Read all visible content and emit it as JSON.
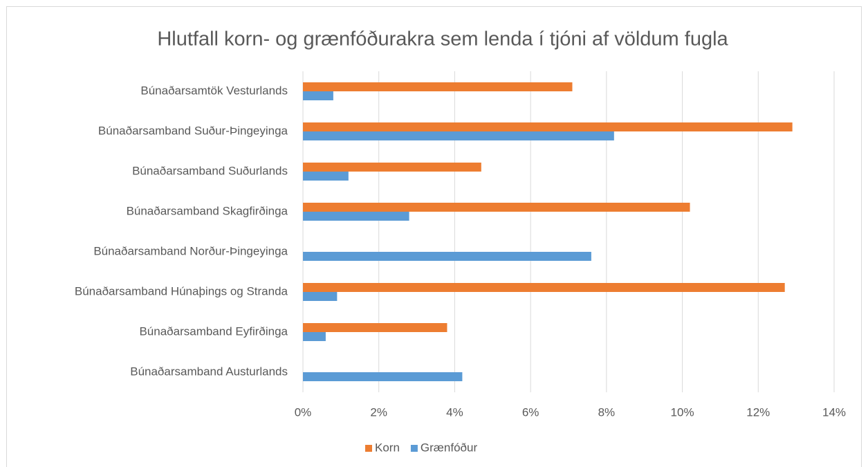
{
  "chart_data": {
    "type": "hbar",
    "title": "Hlutfall korn- og grænfóðurakra sem lenda í tjóni af völdum fugla",
    "categories": [
      "Búnaðarsamtök Vesturlands",
      "Búnaðarsamband Suður-Þingeyinga",
      "Búnaðarsamband Suðurlands",
      "Búnaðarsamband Skagfirðinga",
      "Búnaðarsamband Norður-Þingeyinga",
      "Búnaðarsamband Húnaþings og Stranda",
      "Búnaðarsamband Eyfirðinga",
      "Búnaðarsamband Austurlands"
    ],
    "series": [
      {
        "name": "Korn",
        "color": "#ed7d31",
        "values": [
          7.1,
          12.9,
          4.7,
          10.2,
          0,
          12.7,
          3.8,
          0
        ]
      },
      {
        "name": "Grænfóður",
        "color": "#5b9bd5",
        "values": [
          0.8,
          8.2,
          1.2,
          2.8,
          7.6,
          0.9,
          0.6,
          4.2
        ]
      }
    ],
    "xlim": [
      0,
      14
    ],
    "xticks": [
      {
        "value": 0,
        "label": "0%"
      },
      {
        "value": 2,
        "label": "2%"
      },
      {
        "value": 4,
        "label": "4%"
      },
      {
        "value": 6,
        "label": "6%"
      },
      {
        "value": 8,
        "label": "8%"
      },
      {
        "value": 10,
        "label": "10%"
      },
      {
        "value": 12,
        "label": "12%"
      },
      {
        "value": 14,
        "label": "14%"
      }
    ],
    "grid": true,
    "legend": "bottom"
  }
}
